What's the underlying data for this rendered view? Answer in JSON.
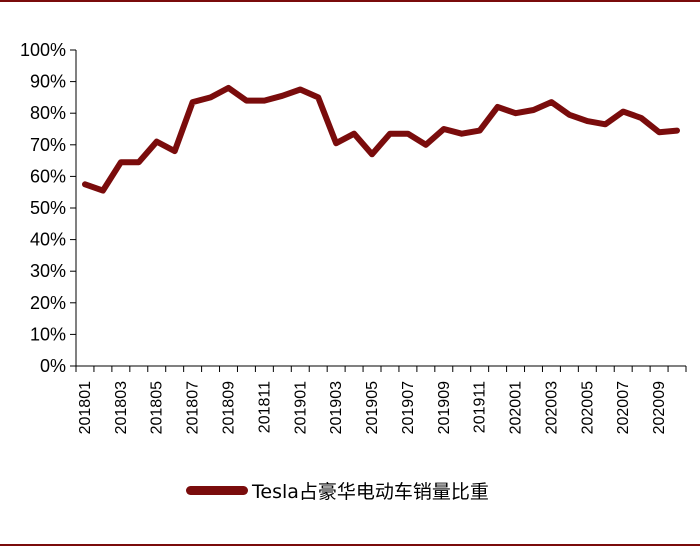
{
  "colors": {
    "series": "#7a0c0c",
    "rule": "#7a0b0b",
    "axis": "#000000"
  },
  "chart_data": {
    "type": "line",
    "title": "",
    "xlabel": "",
    "ylabel": "",
    "ylim": [
      0,
      100
    ],
    "y_ticks": [
      "0%",
      "10%",
      "20%",
      "30%",
      "40%",
      "50%",
      "60%",
      "70%",
      "80%",
      "90%",
      "100%"
    ],
    "x_tick_labels": [
      "201801",
      "201803",
      "201805",
      "201807",
      "201809",
      "201811",
      "201901",
      "201903",
      "201905",
      "201907",
      "201909",
      "201911",
      "202001",
      "202003",
      "202005",
      "202007",
      "202009"
    ],
    "legend_position": "bottom",
    "grid": false,
    "categories": [
      "201801",
      "201802",
      "201803",
      "201804",
      "201805",
      "201806",
      "201807",
      "201808",
      "201809",
      "201810",
      "201811",
      "201812",
      "201901",
      "201902",
      "201903",
      "201904",
      "201905",
      "201906",
      "201907",
      "201908",
      "201909",
      "201910",
      "201911",
      "201912",
      "202001",
      "202002",
      "202003",
      "202004",
      "202005",
      "202006",
      "202007",
      "202008",
      "202009",
      "202010"
    ],
    "series": [
      {
        "name": "Tesla占豪华电动车销量比重",
        "values": [
          57.5,
          55.5,
          64.5,
          64.5,
          71,
          68,
          83.5,
          85,
          88,
          84,
          84,
          85.5,
          87.5,
          85,
          70.5,
          73.5,
          67,
          73.5,
          73.5,
          70,
          75,
          73.5,
          74.5,
          82,
          80,
          81,
          83.5,
          79.5,
          77.5,
          76.5,
          80.5,
          78.5,
          74,
          74.5
        ]
      }
    ]
  }
}
